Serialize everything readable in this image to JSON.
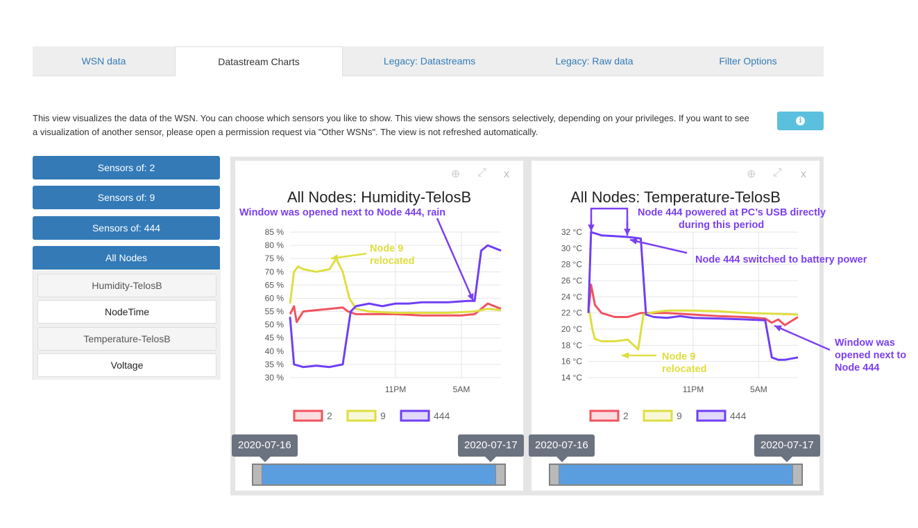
{
  "tabs": [
    "WSN data",
    "Datastream Charts",
    "Legacy: Datastreams",
    "Legacy: Raw data",
    "Filter Options"
  ],
  "intro_text": "This view visualizes the data of the WSN. You can choose which sensors you like to show. This view shows the sensors selectively, depending on your privileges. If you want to see a visualization of another sensor, please open a permission request via \"Other WSNs\". The view is not refreshed automatically.",
  "info_icon": "info-icon",
  "sidebar": {
    "buttons": [
      "Sensors of: 2",
      "Sensors of: 9",
      "Sensors of: 444",
      "All Nodes"
    ],
    "items": [
      "Humidity-TelosB",
      "NodeTime",
      "Temperature-TelosB",
      "Voltage"
    ]
  },
  "colors": {
    "node2": "#f0525f",
    "node9": "#dede40",
    "node444": "#6f3ff5",
    "accent": "#337ab7",
    "annotation": "#7b3ff2"
  },
  "chart_data": [
    {
      "type": "line",
      "title": "All Nodes: Humidity-TelosB",
      "ylabel_ticks": [
        "30 %",
        "35 %",
        "40 %",
        "45 %",
        "50 %",
        "55 %",
        "60 %",
        "65 %",
        "70 %",
        "75 %",
        "80 %",
        "85 %"
      ],
      "ylim": [
        30,
        85
      ],
      "x_ticks": [
        "11PM",
        "5AM"
      ],
      "xlim_hours": [
        0,
        16
      ],
      "x_tick_pos": [
        8,
        13
      ],
      "legend": [
        "2",
        "9",
        "444"
      ],
      "series": [
        {
          "name": "2",
          "x": [
            0,
            0.3,
            0.5,
            1,
            2,
            3,
            4,
            4.4,
            5,
            6,
            8,
            10,
            12,
            13,
            14,
            15,
            16
          ],
          "y": [
            54,
            57,
            51,
            55,
            55.5,
            56,
            56.5,
            55,
            54,
            54,
            54,
            53.5,
            53.5,
            53.5,
            54,
            58,
            56
          ]
        },
        {
          "name": "9",
          "x": [
            0,
            0.3,
            0.6,
            1,
            2,
            3,
            3.5,
            4,
            4.5,
            5,
            6,
            8,
            10,
            12,
            14,
            15,
            16
          ],
          "y": [
            58,
            70,
            72,
            71,
            70,
            71,
            75,
            70,
            60,
            56,
            55,
            54.5,
            54.5,
            54.5,
            55,
            56,
            55.5
          ]
        },
        {
          "name": "444",
          "x": [
            0,
            0.3,
            1,
            2,
            3,
            4,
            4.6,
            5,
            6,
            7,
            8,
            9,
            10,
            11,
            12,
            13.5,
            14,
            14.5,
            15,
            16
          ],
          "y": [
            53,
            35,
            34,
            34.5,
            34,
            35,
            55,
            57,
            58,
            57,
            58,
            58,
            58.5,
            58.5,
            58.5,
            59,
            59,
            78,
            80,
            78
          ]
        }
      ],
      "annotations": [
        "Node 9 relocated",
        "Window was opened next to Node 444, rain"
      ],
      "range": [
        "2020-07-16",
        "2020-07-17"
      ]
    },
    {
      "type": "line",
      "title": "All Nodes: Temperature-TelosB",
      "ylabel_ticks": [
        "14 °C",
        "16 °C",
        "18 °C",
        "20 °C",
        "22 °C",
        "24 °C",
        "26 °C",
        "28 °C",
        "30 °C",
        "32 °C"
      ],
      "ylim": [
        14,
        32
      ],
      "x_ticks": [
        "11PM",
        "5AM"
      ],
      "xlim_hours": [
        0,
        16
      ],
      "x_tick_pos": [
        8,
        13
      ],
      "legend": [
        "2",
        "9",
        "444"
      ],
      "series": [
        {
          "name": "2",
          "x": [
            0,
            0.2,
            0.5,
            1,
            2,
            3,
            4,
            5,
            6,
            8,
            10,
            12,
            13.5,
            14,
            14.5,
            15,
            16
          ],
          "y": [
            22,
            25.5,
            23,
            22,
            21.5,
            21.5,
            22,
            22,
            22,
            21.8,
            21.6,
            21.5,
            21.3,
            20.8,
            21.2,
            20.5,
            21.5
          ]
        },
        {
          "name": "9",
          "x": [
            0,
            0.3,
            0.5,
            1,
            2,
            3,
            3.8,
            4.2,
            5,
            6,
            8,
            10,
            12,
            14,
            16
          ],
          "y": [
            23,
            20,
            18.8,
            18.5,
            18.5,
            18.7,
            17.5,
            21.8,
            22.1,
            22.3,
            22.3,
            22.2,
            22.0,
            21.9,
            21.8
          ]
        },
        {
          "name": "444",
          "x": [
            0,
            0.2,
            1,
            2,
            3,
            4,
            4.4,
            5,
            6,
            7,
            8,
            10,
            12,
            13.5,
            14,
            14.5,
            15,
            16
          ],
          "y": [
            22,
            32,
            31.6,
            31.5,
            31.4,
            31.2,
            21.8,
            21.5,
            21.4,
            21.6,
            21.4,
            21.3,
            21.2,
            21.1,
            16.5,
            16.2,
            16.2,
            16.5
          ]
        }
      ],
      "annotations": [
        "Node 444 powered at PC's USB directly during this period",
        "Node 444 switched to battery power",
        "Node 9 relocated",
        "Window was opened next to Node 444"
      ],
      "range": [
        "2020-07-16",
        "2020-07-17"
      ]
    }
  ],
  "ann": {
    "h_window": "Window was opened next to Node 444, rain",
    "h_node9": [
      "Node 9",
      "relocated"
    ],
    "t_usb": [
      "Node 444 powered at PC’s USB directly",
      "during this period"
    ],
    "t_battery": "Node 444 switched to battery power",
    "t_node9": [
      "Node 9",
      "relocated"
    ],
    "t_window": [
      "Window was",
      "opened next to",
      "Node 444"
    ]
  },
  "dates": {
    "start": "2020-07-16",
    "end": "2020-07-17"
  },
  "card_icons": [
    "download-icon",
    "expand-icon",
    "close-icon"
  ],
  "close_label": "x"
}
